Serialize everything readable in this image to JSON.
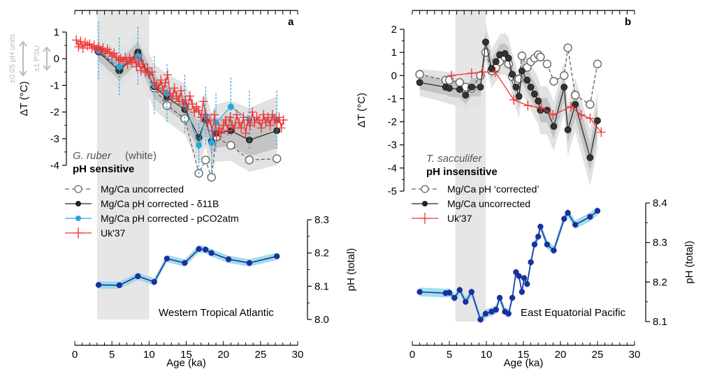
{
  "colors": {
    "uncorrected": "#555555",
    "corrected_b": "#333333",
    "corrected_pco2": "#29a8e0",
    "uk37": "#ee3333",
    "ph_line": "#1a2fa0",
    "ph_band": "#8fd8e8",
    "shade": "#e6e6e6",
    "band_outer": "#e2e2e2",
    "band_inner": "#c4c4c4"
  },
  "chart_data": [
    {
      "panel": "a",
      "type": "line",
      "ylabel": "ΔT (°C)",
      "ylim": [
        -4,
        1
      ],
      "yticks": [
        "1",
        "0",
        "-1",
        "-2",
        "-3",
        "-4"
      ],
      "xlim": [
        0,
        30
      ],
      "shaded_age": [
        3,
        10
      ],
      "scale_labels": {
        "ph": "±0.05 pH units",
        "psu": "±1 PSU"
      },
      "species": "G. ruber",
      "species_note": " (white)",
      "sensitivity": "pH sensitive",
      "legend": [
        "Mg/Ca uncorrected",
        "Mg/Ca pH corrected - δ11B",
        "Mg/Ca pH corrected - pCO2atm",
        "Uk'37"
      ],
      "series": [
        {
          "name": "Mg/Ca uncorrected",
          "style": "open",
          "x": [
            3.2,
            6,
            8.5,
            10.7,
            12.4,
            14.8,
            16.7,
            17.6,
            18.4,
            19,
            21,
            23.5,
            27.2
          ],
          "y": [
            0.3,
            -0.4,
            0.1,
            -1.1,
            -1.75,
            -2.25,
            -4.3,
            -3.8,
            -4.45,
            -2.95,
            -3.25,
            -3.8,
            -3.75
          ]
        },
        {
          "name": "Mg/Ca pH corrected - δ11B",
          "style": "black",
          "x": [
            3.2,
            6,
            8.5,
            10.7,
            12.4,
            14.8,
            16.7,
            17.6,
            18.4,
            19,
            21,
            23.5,
            27.2
          ],
          "y": [
            0.25,
            -0.45,
            0.25,
            -1.05,
            -1.45,
            -1.9,
            -2.95,
            -2.3,
            -3.1,
            -2.8,
            -2.7,
            -3.05,
            -2.7
          ]
        },
        {
          "name": "Mg/Ca pH corrected - pCO2atm",
          "style": "blue",
          "x": [
            3.2,
            6,
            8.5,
            10.7,
            12.4,
            14.8,
            16.7,
            17.6,
            18.4,
            19,
            21,
            23.5,
            27.2
          ],
          "y": [
            0.3,
            -0.3,
            0.1,
            -1.0,
            -1.3,
            -1.7,
            -3.25,
            -2.15,
            -3.15,
            -2.4,
            -1.8,
            -2.3,
            -2.3
          ]
        },
        {
          "name": "Uk'37",
          "style": "cross",
          "x": [
            0.2,
            0.5,
            0.8,
            1.1,
            1.4,
            1.7,
            2.0,
            2.3,
            2.6,
            2.9,
            3.2,
            3.5,
            3.8,
            4.1,
            4.4,
            4.7,
            5.0,
            5.3,
            5.6,
            5.9,
            6.2,
            6.5,
            6.8,
            7.1,
            7.4,
            7.7,
            8.0,
            8.3,
            8.6,
            8.9,
            9.2,
            9.5,
            9.8,
            10.1,
            10.4,
            10.7,
            11.0,
            11.3,
            11.6,
            11.9,
            12.2,
            12.5,
            12.8,
            13.1,
            13.4,
            13.7,
            14.0,
            14.3,
            14.6,
            14.9,
            15.2,
            15.5,
            15.8,
            16.1,
            16.4,
            16.7,
            17.0,
            17.3,
            17.6,
            17.9,
            18.2,
            18.5,
            18.8,
            19.1,
            19.4,
            19.7,
            20.0,
            20.3,
            20.6,
            20.9,
            21.2,
            21.5,
            21.8,
            22.1,
            22.4,
            22.7,
            23.0,
            23.3,
            23.6,
            23.9,
            24.2,
            24.5,
            24.8,
            25.1,
            25.4,
            25.7,
            26.0,
            26.3,
            26.6,
            26.9,
            27.2,
            27.5,
            27.8,
            28.1
          ],
          "y": [
            0.7,
            0.45,
            0.65,
            0.4,
            0.6,
            0.5,
            0.55,
            0.4,
            0.5,
            0.35,
            0.45,
            0.3,
            0.4,
            0.2,
            0.35,
            0.25,
            0.1,
            0.2,
            0.05,
            -0.05,
            0.0,
            -0.1,
            0.05,
            -0.2,
            0.0,
            -0.15,
            0.05,
            -0.3,
            -0.1,
            -0.45,
            -0.2,
            -0.5,
            -0.35,
            -0.6,
            -0.5,
            -0.9,
            -1.0,
            -1.1,
            -0.8,
            -1.2,
            -0.9,
            -0.6,
            -1.3,
            -1.5,
            -1.1,
            -1.4,
            -1.6,
            -1.2,
            -1.7,
            -1.55,
            -1.9,
            -1.4,
            -1.7,
            -2.0,
            -1.8,
            -1.95,
            -2.2,
            -1.6,
            -2.1,
            -2.4,
            -2.3,
            -2.7,
            -2.1,
            -2.9,
            -2.6,
            -2.8,
            -2.5,
            -2.3,
            -2.7,
            -2.2,
            -2.5,
            -2.6,
            -2.1,
            -2.4,
            -2.6,
            -2.2,
            -2.8,
            -2.3,
            -2.5,
            -2.0,
            -2.4,
            -2.2,
            -2.3,
            -2.6,
            -2.1,
            -2.4,
            -2.2,
            -2.5,
            -2.1,
            -2.3,
            -2.4,
            -2.2,
            -2.6,
            -2.3
          ]
        }
      ],
      "ph": {
        "ylabel": "pH (total)",
        "ylim": [
          8.0,
          8.3
        ],
        "yticks": [
          "8.3",
          "8.2",
          "8.1",
          "8.0"
        ],
        "location": "Western Tropical Atlantic",
        "x": [
          3.2,
          6,
          8.5,
          10.7,
          12.4,
          14.8,
          16.7,
          17.6,
          18.4,
          20.7,
          23.5,
          27.2
        ],
        "y": [
          8.104,
          8.103,
          8.13,
          8.113,
          8.183,
          8.17,
          8.212,
          8.21,
          8.2,
          8.181,
          8.17,
          8.19
        ]
      }
    },
    {
      "panel": "b",
      "type": "line",
      "ylabel": "ΔT (°C)",
      "ylim": [
        -5,
        2
      ],
      "yticks": [
        "2",
        "1",
        "0",
        "-1",
        "-2",
        "-3",
        "-4",
        "-5"
      ],
      "xlim": [
        0,
        30
      ],
      "shaded_age": [
        5.8,
        9.9
      ],
      "species": "T. sacculifer",
      "species_note": "",
      "sensitivity": "pH insensitive",
      "legend": [
        "Mg/Ca pH ‘corrected’",
        "Mg/Ca uncorrected",
        "Uk'37"
      ],
      "series": [
        {
          "name": "Mg/Ca pH ‘corrected’",
          "style": "open",
          "x": [
            1.0,
            4.5,
            5.0,
            6.4,
            7.2,
            8.0,
            9.2,
            9.9,
            10.7,
            11.3,
            11.8,
            12.5,
            13.0,
            13.5,
            14.0,
            14.4,
            14.8,
            15.5,
            16.0,
            16.5,
            17.0,
            17.3,
            18.2,
            19.1,
            20.5,
            21.0,
            22.0,
            24.0,
            25.0
          ],
          "y": [
            0.05,
            -0.2,
            -0.2,
            -0.3,
            -0.5,
            -0.55,
            0.0,
            1.0,
            0.2,
            0.35,
            0.6,
            0.8,
            0.5,
            -0.05,
            -0.25,
            -0.15,
            0.85,
            0.35,
            0.6,
            0.75,
            0.9,
            0.8,
            0.5,
            -0.25,
            0.0,
            1.2,
            -0.85,
            -1.25,
            0.5
          ]
        },
        {
          "name": "Mg/Ca uncorrected",
          "style": "black",
          "x": [
            1.0,
            4.5,
            5.0,
            6.4,
            7.2,
            8.0,
            9.2,
            9.9,
            10.7,
            11.3,
            11.8,
            12.5,
            13.0,
            13.5,
            14.0,
            14.4,
            14.8,
            15.5,
            16.0,
            16.5,
            17.0,
            17.3,
            18.2,
            19.1,
            20.5,
            21.0,
            22.0,
            24.0,
            25.0
          ],
          "y": [
            -0.3,
            -0.5,
            -0.55,
            -0.6,
            -0.85,
            -0.5,
            -0.5,
            1.45,
            0.3,
            0.6,
            0.9,
            0.95,
            0.75,
            0.05,
            -0.5,
            -0.9,
            0.2,
            -0.2,
            -0.5,
            -0.8,
            -1.1,
            -1.5,
            -1.5,
            -2.2,
            -0.5,
            -2.35,
            -1.25,
            -3.55,
            -1.95
          ]
        },
        {
          "name": "Uk'37",
          "style": "cross",
          "x": [
            5.3,
            8.0,
            9.5,
            11.2,
            13.7,
            15.6,
            17.4,
            19.0,
            21.4,
            22.8,
            24.0,
            25.5
          ],
          "y": [
            0.0,
            0.1,
            0.15,
            0.15,
            -1.05,
            -1.3,
            -1.4,
            -1.7,
            -1.35,
            -1.7,
            -1.85,
            -2.45
          ]
        }
      ],
      "ph": {
        "ylabel": "pH (total)",
        "ylim": [
          8.1,
          8.4
        ],
        "yticks": [
          "8.4",
          "8.3",
          "8.2",
          "8.1"
        ],
        "location": "East Equatorial Pacific",
        "x": [
          1.0,
          4.5,
          5.0,
          5.7,
          6.4,
          7.2,
          8.0,
          9.2,
          9.9,
          10.7,
          11.3,
          11.8,
          12.5,
          13.0,
          13.5,
          14.0,
          14.4,
          14.8,
          15.1,
          15.5,
          16.0,
          16.5,
          17.0,
          17.3,
          18.2,
          19.1,
          20.5,
          21.0,
          22.0,
          24.0,
          25.0
        ],
        "y": [
          8.175,
          8.172,
          8.173,
          8.16,
          8.18,
          8.15,
          8.175,
          8.105,
          8.12,
          8.125,
          8.13,
          8.16,
          8.125,
          8.12,
          8.16,
          8.225,
          8.215,
          8.175,
          8.21,
          8.195,
          8.25,
          8.295,
          8.315,
          8.34,
          8.295,
          8.28,
          8.36,
          8.375,
          8.345,
          8.365,
          8.38
        ]
      }
    }
  ],
  "axes": {
    "xlabel": "Age (ka)",
    "xticks": [
      "0",
      "5",
      "10",
      "15",
      "20",
      "25",
      "30"
    ]
  }
}
